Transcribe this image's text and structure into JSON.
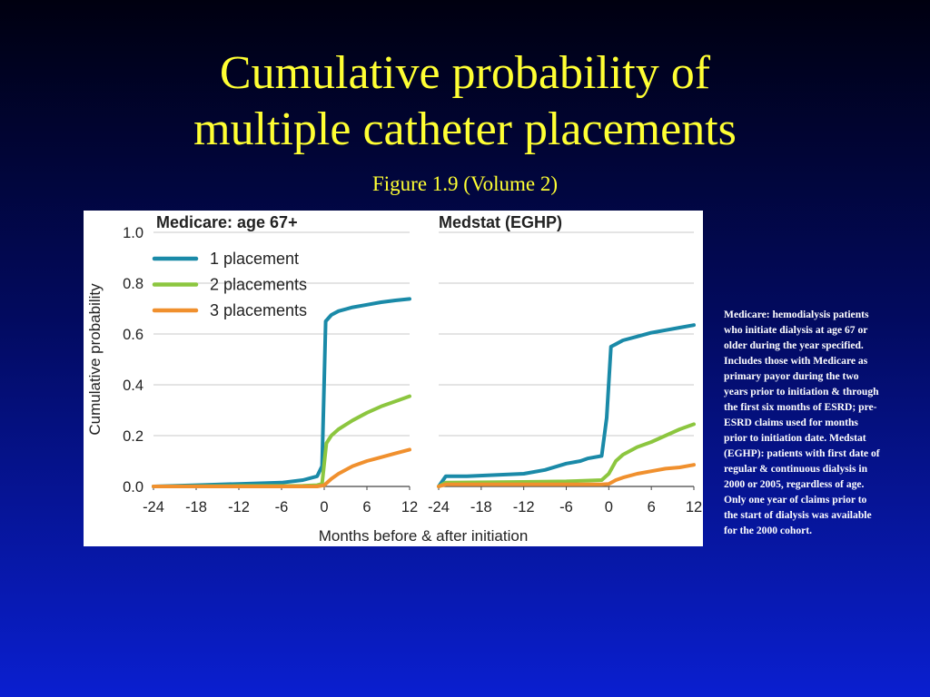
{
  "slide": {
    "title_line1": "Cumulative probability of",
    "title_line2": "multiple catheter placements",
    "subtitle": "Figure 1.9 (Volume 2)",
    "note": "Medicare: hemodialysis patients who initiate dialysis at age 67 or older during the year specified. Includes those with Medicare as primary payor during the two years prior to initiation & through the first six months of ESRD; pre-ESRD claims used for months prior to initiation date. Medstat (EGHP): patients with first date of regular & continuous dialysis in 2000 or 2005, regardless of age. Only one year of claims prior to the start of dialysis was available for the 2000 cohort.",
    "background_colors": [
      "#000010",
      "#0a1fd0"
    ],
    "title_color": "#ffff33"
  },
  "chart_data": [
    {
      "type": "line",
      "title": "Medicare: age 67+",
      "xlabel": "Months before & after initiation",
      "ylabel": "Cumulative probability",
      "xlim": [
        -24,
        12
      ],
      "ylim": [
        0,
        1.0
      ],
      "xticks": [
        -24,
        -18,
        -12,
        -6,
        0,
        6,
        12
      ],
      "xtick_labels": [
        "-24",
        "-18",
        "-12",
        "-6",
        "0",
        "6",
        "12"
      ],
      "yticks": [
        0,
        0.2,
        0.4,
        0.6,
        0.8,
        1.0
      ],
      "ytick_labels": [
        "0.0",
        "0.2",
        "0.4",
        "0.6",
        "0.8",
        "1.0"
      ],
      "grid": true,
      "legend": "top-left",
      "series": [
        {
          "name": "1 placement",
          "color": "#1a8aa8",
          "x": [
            -24,
            -18,
            -12,
            -6,
            -3,
            -1,
            -0.3,
            0.2,
            1,
            2,
            4,
            6,
            8,
            10,
            12
          ],
          "y": [
            0.0,
            0.005,
            0.01,
            0.015,
            0.025,
            0.04,
            0.08,
            0.65,
            0.675,
            0.69,
            0.705,
            0.715,
            0.725,
            0.732,
            0.738
          ]
        },
        {
          "name": "2 placements",
          "color": "#8cc63f",
          "x": [
            -24,
            -12,
            -3,
            -1,
            -0.3,
            0.3,
            1,
            2,
            4,
            6,
            8,
            10,
            12
          ],
          "y": [
            0.0,
            0.002,
            0.003,
            0.005,
            0.01,
            0.17,
            0.2,
            0.225,
            0.26,
            0.29,
            0.315,
            0.335,
            0.355
          ]
        },
        {
          "name": "3 placements",
          "color": "#f0902e",
          "x": [
            -24,
            -1,
            0,
            1,
            2,
            4,
            6,
            8,
            10,
            12
          ],
          "y": [
            0.0,
            0.0,
            0.005,
            0.03,
            0.05,
            0.08,
            0.1,
            0.115,
            0.13,
            0.145
          ]
        }
      ]
    },
    {
      "type": "line",
      "title": "Medstat (EGHP)",
      "xlim": [
        -24,
        12
      ],
      "ylim": [
        0,
        1.0
      ],
      "xticks": [
        -24,
        -18,
        -12,
        -6,
        0,
        6,
        12
      ],
      "xtick_labels": [
        "-24",
        "-18",
        "-12",
        "-6",
        "0",
        "6",
        "12"
      ],
      "grid": true,
      "series": [
        {
          "name": "1 placement",
          "color": "#1a8aa8",
          "x": [
            -24,
            -23,
            -20,
            -16,
            -12,
            -9,
            -6,
            -4,
            -3,
            -1,
            -0.3,
            0.3,
            1,
            2,
            4,
            6,
            8,
            10,
            12
          ],
          "y": [
            0.0,
            0.04,
            0.04,
            0.045,
            0.05,
            0.065,
            0.09,
            0.1,
            0.11,
            0.12,
            0.27,
            0.55,
            0.56,
            0.575,
            0.59,
            0.605,
            0.615,
            0.625,
            0.635
          ]
        },
        {
          "name": "2 placements",
          "color": "#8cc63f",
          "x": [
            -24,
            -23,
            -12,
            -6,
            -1,
            0,
            1,
            2,
            4,
            6,
            8,
            10,
            12
          ],
          "y": [
            0.0,
            0.015,
            0.018,
            0.02,
            0.025,
            0.05,
            0.1,
            0.125,
            0.155,
            0.175,
            0.2,
            0.225,
            0.245
          ]
        },
        {
          "name": "3 placements",
          "color": "#f0902e",
          "x": [
            -24,
            -23,
            -12,
            -6,
            -1,
            0,
            1,
            2,
            4,
            6,
            8,
            10,
            12
          ],
          "y": [
            0.0,
            0.008,
            0.008,
            0.008,
            0.008,
            0.01,
            0.025,
            0.035,
            0.05,
            0.06,
            0.07,
            0.075,
            0.085
          ]
        }
      ]
    }
  ]
}
